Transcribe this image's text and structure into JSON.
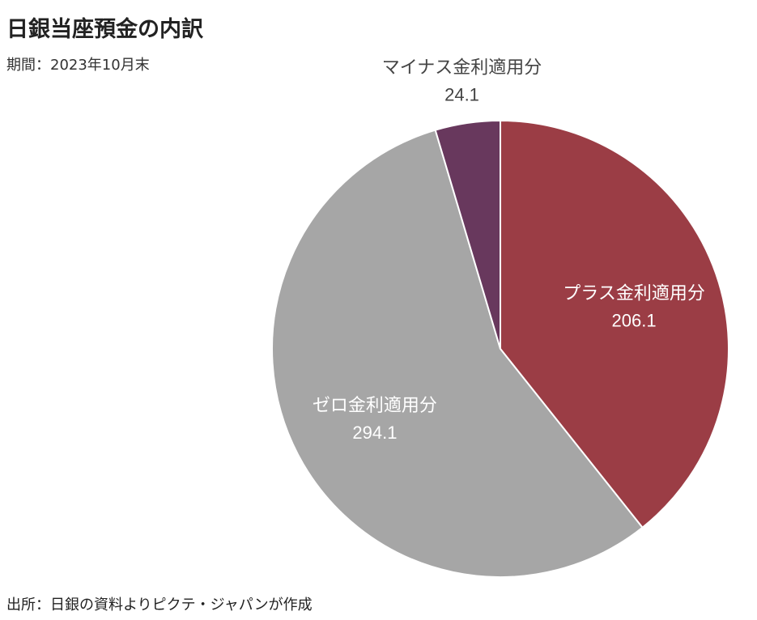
{
  "title": "日銀当座預金の内訳",
  "subtitle": "期間：2023年10月末",
  "source": "出所：日銀の資料よりピクテ・ジャパンが作成",
  "chart_data": {
    "type": "pie",
    "title": "日銀当座預金の内訳",
    "start": "12 o'clock",
    "direction": "clockwise",
    "legend": "none (inline labels)",
    "slices": [
      {
        "label": "プラス金利適用分",
        "value": 206.1,
        "value_label": "206.1",
        "color": "#9b3d45",
        "label_color": "#ffffff",
        "label_placement": "inside"
      },
      {
        "label": "ゼロ金利適用分",
        "value": 294.1,
        "value_label": "294.1",
        "color": "#a6a6a6",
        "label_color": "#ffffff",
        "label_placement": "inside"
      },
      {
        "label": "マイナス金利適用分",
        "value": 24.1,
        "value_label": "24.1",
        "color": "#68385d",
        "label_color": "#444444",
        "label_placement": "outside"
      }
    ]
  }
}
